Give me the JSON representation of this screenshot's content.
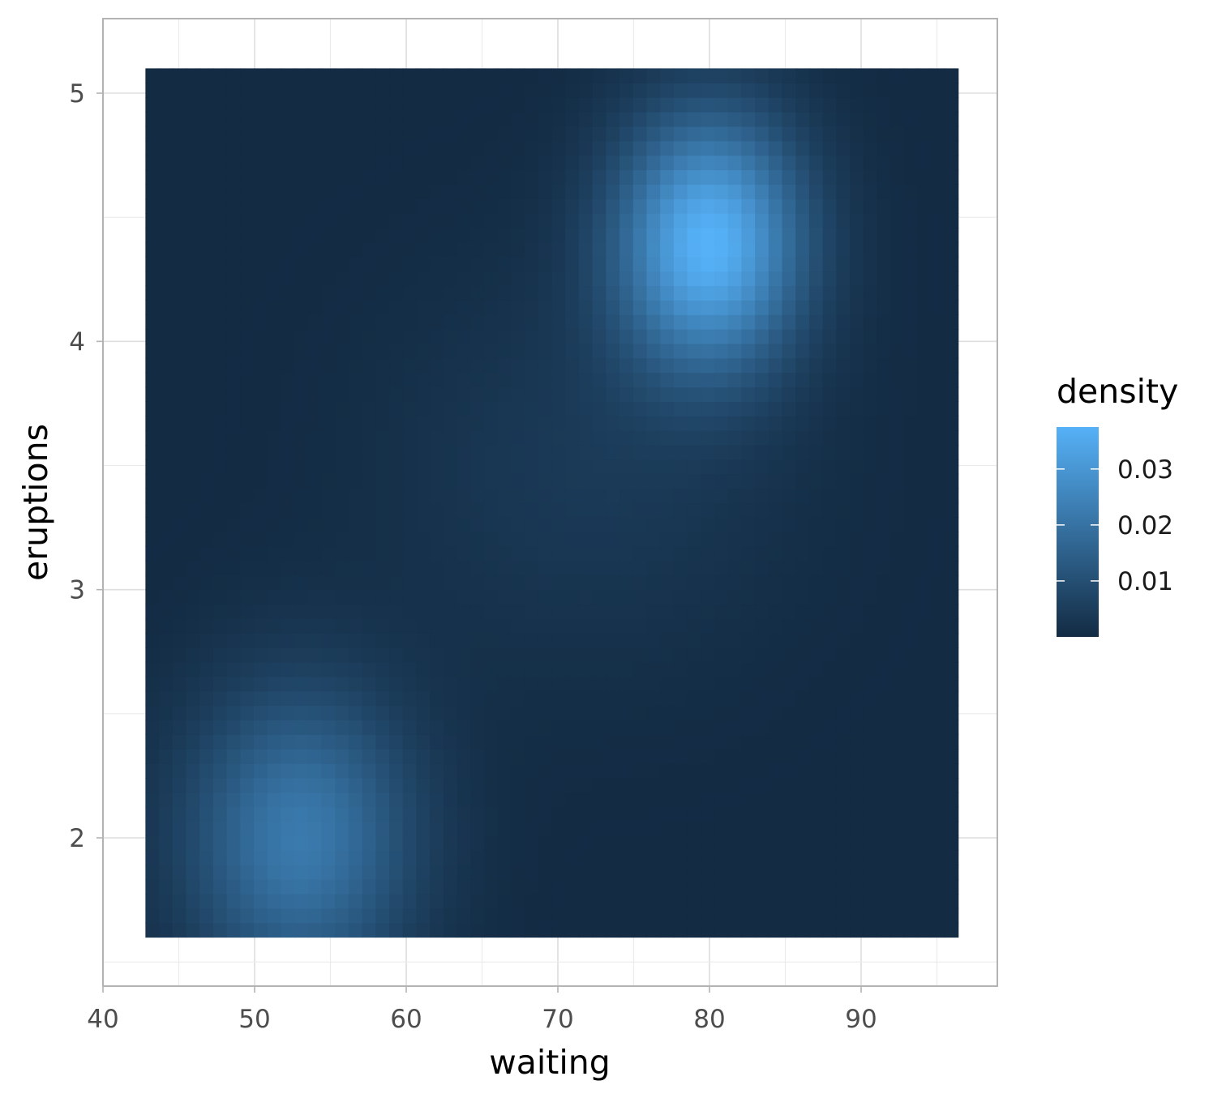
{
  "chart_data": {
    "type": "heatmap",
    "title": "",
    "xlabel": "waiting",
    "ylabel": "eruptions",
    "x_ticks": [
      "40",
      "50",
      "60",
      "70",
      "80",
      "90"
    ],
    "y_ticks": [
      "2",
      "3",
      "4",
      "5"
    ],
    "xlim": [
      40,
      99
    ],
    "ylim": [
      1.4,
      5.3
    ],
    "raster_x_range": [
      42.8,
      96.4
    ],
    "raster_y_range": [
      1.6,
      5.1
    ],
    "grid": true,
    "legend": {
      "title": "density",
      "position": "right",
      "breaks": [
        0.01,
        0.02,
        0.03
      ],
      "labels": [
        "0.01",
        "0.02",
        "0.03"
      ],
      "range": [
        0.0,
        0.0375
      ]
    },
    "density_peaks": [
      {
        "waiting": 80.0,
        "eruptions": 4.4,
        "density": 0.037
      },
      {
        "waiting": 53.0,
        "eruptions": 2.0,
        "density": 0.022
      }
    ],
    "colors": {
      "low": "#132B43",
      "high": "#56B1F7"
    }
  }
}
